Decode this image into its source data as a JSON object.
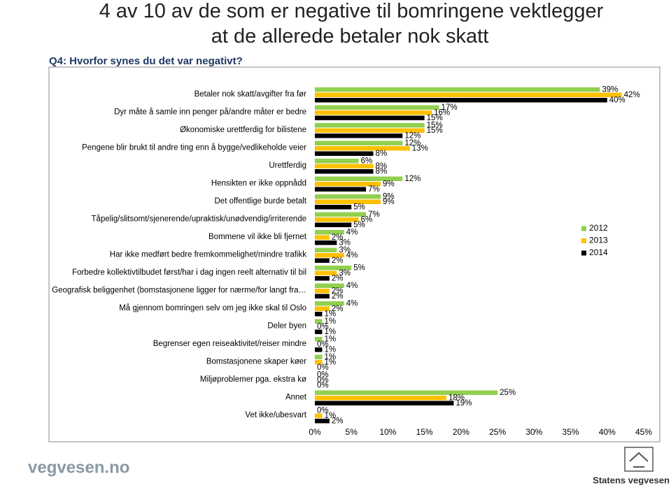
{
  "chart_data": {
    "type": "hbar",
    "title": "4 av 10 av de som er negative til bomringene vektlegger at de allerede betaler nok skatt",
    "subtitle": "Q4: Hvorfor synes du det var negativt?",
    "categories": [
      "Betaler nok skatt/avgifter fra før",
      "Dyr måte å samle inn penger på/andre måter er bedre",
      "Økonomiske urettferdig for bilistene",
      "Pengene blir brukt til andre ting enn å bygge/vedlikeholde veier",
      "Urettferdig",
      "Hensikten er ikke oppnådd",
      "Det offentlige burde betalt",
      "Tåpelig/slitsomt/sjenerende/upraktisk/unødvendig/irriterende",
      "Bommene vil ikke bli fjernet",
      "Har ikke medført bedre fremkommelighet/mindre trafikk",
      "Forbedre kollektivtilbudet først/har i dag ingen reelt alternativ til bil",
      "Geografisk beliggenhet (bomstasjonene ligger for nærme/for langt fra…",
      "Må gjennom bomringen selv om jeg ikke skal til Oslo",
      "Deler byen",
      "Begrenser egen reiseaktivitet/reiser mindre",
      "Bomstasjonene skaper køer",
      "Miljøproblemer pga. ekstra kø",
      "Annet",
      "Vet ikke/ubesvart"
    ],
    "series": [
      {
        "name": "2012",
        "color": "#92d050",
        "values": [
          39,
          17,
          15,
          12,
          6,
          12,
          9,
          7,
          4,
          3,
          5,
          4,
          4,
          1,
          1,
          1,
          0,
          25,
          0
        ],
        "value_labels": [
          "39%",
          "17%",
          "15%",
          "12%",
          "6%",
          "12%",
          "9%",
          "7%",
          "4%",
          "3%",
          "5%",
          "4%",
          "4%",
          "1%",
          "1%",
          "1%",
          "0%",
          "25%",
          "0%"
        ]
      },
      {
        "name": "2013",
        "color": "#ffc000",
        "values": [
          42,
          16,
          15,
          13,
          8,
          9,
          9,
          6,
          2,
          4,
          3,
          2,
          2,
          0,
          0,
          1,
          0,
          18,
          1
        ],
        "value_labels": [
          "42%",
          "16%",
          "15%",
          "13%",
          "8%",
          "9%",
          "9%",
          "6%",
          "2%",
          "4%",
          "3%",
          "2%",
          "2%",
          "0%",
          "0%",
          "1%",
          "0%",
          "18%",
          "1%"
        ]
      },
      {
        "name": "2014",
        "color": "#000000",
        "values": [
          40,
          15,
          12,
          8,
          8,
          7,
          5,
          5,
          3,
          2,
          2,
          2,
          1,
          1,
          1,
          0,
          0,
          19,
          2
        ],
        "value_labels": [
          "40%",
          "15%",
          "12%",
          "8%",
          "8%",
          "7%",
          "5%",
          "5%",
          "3%",
          "2%",
          "2%",
          "2%",
          "1%",
          "1%",
          "1%",
          "0%",
          "0%",
          "19%",
          "2%"
        ]
      }
    ],
    "xlim": [
      0,
      45
    ],
    "xticks": [
      {
        "value": 0,
        "label": "0%"
      },
      {
        "value": 5,
        "label": "5%"
      },
      {
        "value": 10,
        "label": "10%"
      },
      {
        "value": 15,
        "label": "15%"
      },
      {
        "value": 20,
        "label": "20%"
      },
      {
        "value": 25,
        "label": "25%"
      },
      {
        "value": 30,
        "label": "30%"
      },
      {
        "value": 35,
        "label": "35%"
      },
      {
        "value": 40,
        "label": "40%"
      },
      {
        "value": 45,
        "label": "45%"
      }
    ],
    "legend": "right"
  },
  "footer": {
    "site": "vegvesen.no",
    "brand": "Statens vegvesen"
  }
}
